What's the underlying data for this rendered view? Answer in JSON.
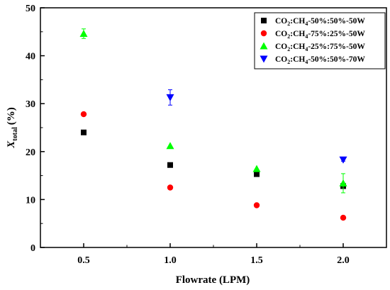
{
  "chart_data": {
    "type": "scatter",
    "xlabel": "Flowrate (LPM)",
    "ylabel": {
      "main": "X",
      "sub": "total",
      "unit": "(%)"
    },
    "xlim": [
      0.25,
      2.25
    ],
    "ylim": [
      0,
      50
    ],
    "xticks": [
      "0.5",
      "1.0",
      "1.5",
      "2.0"
    ],
    "yticks": [
      "0",
      "10",
      "20",
      "30",
      "40",
      "50"
    ],
    "x": [
      0.5,
      1.0,
      1.5,
      2.0
    ],
    "grid": false,
    "legend_position": "top-right",
    "series": [
      {
        "name": "CO2:CH4-50%:50%-50W",
        "legend": {
          "a": "CO",
          "b": "2",
          "c": ":CH",
          "d": "4",
          "e": "-50%:50%-50W"
        },
        "marker": "square",
        "color": "#000000",
        "values": [
          24.0,
          17.2,
          15.3,
          12.8
        ],
        "errors": [
          0,
          0,
          0,
          0
        ]
      },
      {
        "name": "CO2:CH4-75%:25%-50W",
        "legend": {
          "a": "CO",
          "b": "2",
          "c": ":CH",
          "d": "4",
          "e": "-75%:25%-50W"
        },
        "marker": "circle",
        "color": "#ff0000",
        "values": [
          27.8,
          12.5,
          8.8,
          6.2
        ],
        "errors": [
          0,
          0,
          0,
          0
        ]
      },
      {
        "name": "CO2:CH4-25%:75%-50W",
        "legend": {
          "a": "CO",
          "b": "2",
          "c": ":CH",
          "d": "4",
          "e": "-25%:75%-50W"
        },
        "marker": "triangle-up",
        "color": "#00ff00",
        "values": [
          44.6,
          21.2,
          16.4,
          13.4
        ],
        "errors": [
          1.0,
          0,
          0,
          2.0
        ]
      },
      {
        "name": "CO2:CH4-50%:50%-70W",
        "legend": {
          "a": "CO",
          "b": "2",
          "c": ":CH",
          "d": "4",
          "e": "-50%:50%-70W"
        },
        "marker": "triangle-down",
        "color": "#0000ff",
        "values": [
          null,
          31.3,
          null,
          18.3
        ],
        "errors": [
          0,
          1.6,
          0,
          0.3
        ]
      }
    ]
  }
}
